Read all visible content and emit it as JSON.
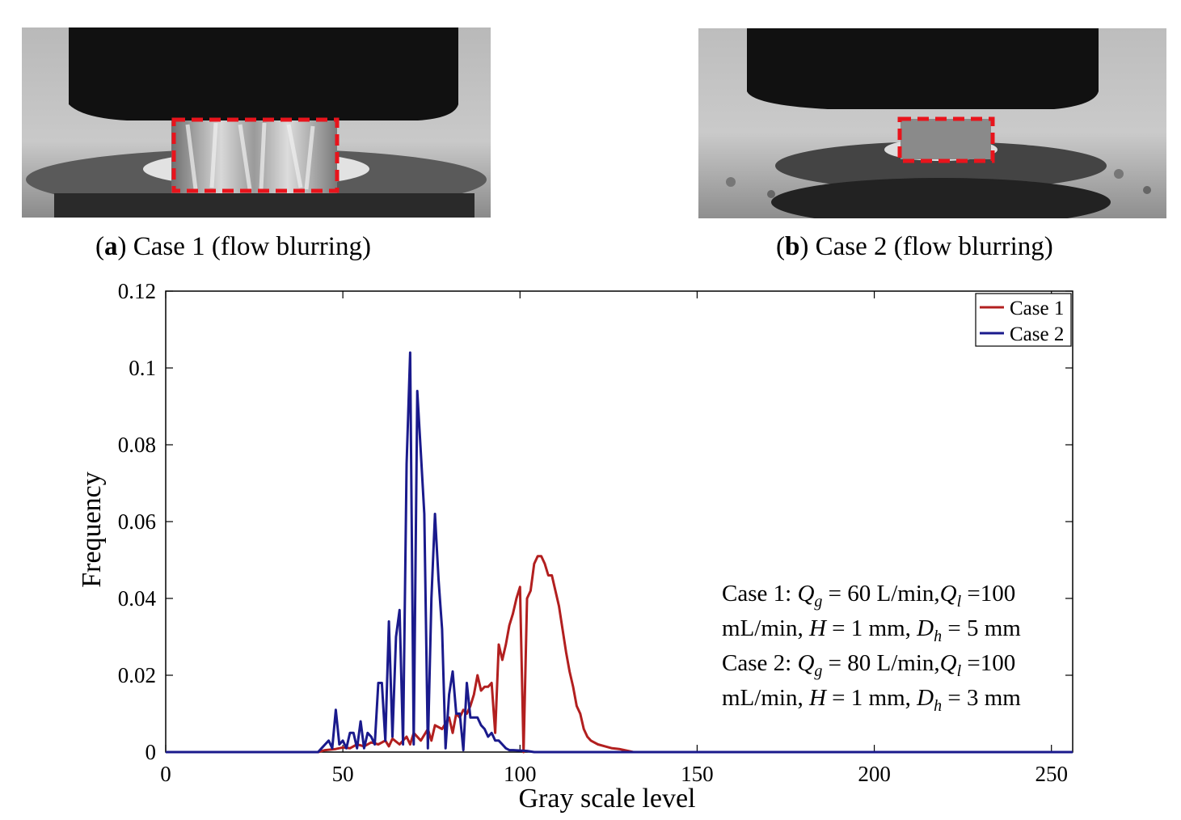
{
  "panels": [
    {
      "letter": "a",
      "caption": "Case 1 (flow blurring)"
    },
    {
      "letter": "b",
      "caption": "Case 2 (flow blurring)"
    }
  ],
  "annotation": [
    {
      "prefix": "Case 1: ",
      "q_g": "Q",
      "g_sub": "g",
      "mid": " = 60 L/min,",
      "q_l": "Q",
      "l_sub": "l",
      "end": " =100"
    },
    {
      "prefix": "mL/min, ",
      "h": "H",
      "h_val": " = 1 mm, ",
      "d": "D",
      "d_sub": "h",
      "d_val": " = 5 mm"
    },
    {
      "prefix": "Case 2: ",
      "q_g": "Q",
      "g_sub": "g",
      "mid": " = 80 L/min,",
      "q_l": "Q",
      "l_sub": "l",
      "end": " =100"
    },
    {
      "prefix": "mL/min, ",
      "h": "H",
      "h_val": " = 1 mm, ",
      "d": "D",
      "d_sub": "h",
      "d_val": " = 3 mm"
    }
  ],
  "colors": {
    "case1": "#b21f1f",
    "case2": "#1a1a8c",
    "highlight_box": "#e8141c"
  },
  "chart_data": {
    "type": "line",
    "xlabel": "Gray scale level",
    "ylabel": "Frequency",
    "xlim": [
      0,
      256
    ],
    "ylim": [
      0,
      0.12
    ],
    "xticks": [
      0,
      50,
      100,
      150,
      200,
      250
    ],
    "yticks": [
      0,
      0.02,
      0.04,
      0.06,
      0.08,
      0.1,
      0.12
    ],
    "ytick_labels": [
      "0",
      "0.02",
      "0.04",
      "0.06",
      "0.08",
      "0.1",
      "0.12"
    ],
    "legend_position": "top-right",
    "series": [
      {
        "name": "Case 1",
        "color": "#b21f1f",
        "points": [
          [
            0,
            0
          ],
          [
            43,
            0
          ],
          [
            45,
            0.0005
          ],
          [
            48,
            0.0008
          ],
          [
            50,
            0.0012
          ],
          [
            52,
            0.001
          ],
          [
            54,
            0.002
          ],
          [
            56,
            0.0015
          ],
          [
            58,
            0.0025
          ],
          [
            60,
            0.002
          ],
          [
            62,
            0.003
          ],
          [
            63,
            0.0015
          ],
          [
            64,
            0.0035
          ],
          [
            66,
            0.002
          ],
          [
            68,
            0.004
          ],
          [
            69,
            0.002
          ],
          [
            70,
            0.005
          ],
          [
            72,
            0.003
          ],
          [
            74,
            0.006
          ],
          [
            75,
            0.003
          ],
          [
            76,
            0.007
          ],
          [
            78,
            0.006
          ],
          [
            80,
            0.009
          ],
          [
            81,
            0.005
          ],
          [
            82,
            0.01
          ],
          [
            83,
            0.009
          ],
          [
            84,
            0.011
          ],
          [
            85,
            0.01
          ],
          [
            86,
            0.012
          ],
          [
            87,
            0.015
          ],
          [
            88,
            0.02
          ],
          [
            89,
            0.016
          ],
          [
            90,
            0.017
          ],
          [
            91,
            0.017
          ],
          [
            92,
            0.018
          ],
          [
            93,
            0.005
          ],
          [
            94,
            0.028
          ],
          [
            95,
            0.024
          ],
          [
            96,
            0.028
          ],
          [
            97,
            0.033
          ],
          [
            98,
            0.036
          ],
          [
            99,
            0.04
          ],
          [
            100,
            0.043
          ],
          [
            101,
            0
          ],
          [
            102,
            0.04
          ],
          [
            103,
            0.042
          ],
          [
            104,
            0.049
          ],
          [
            105,
            0.051
          ],
          [
            106,
            0.051
          ],
          [
            107,
            0.049
          ],
          [
            108,
            0.046
          ],
          [
            109,
            0.046
          ],
          [
            110,
            0.042
          ],
          [
            111,
            0.038
          ],
          [
            112,
            0.032
          ],
          [
            113,
            0.026
          ],
          [
            114,
            0.021
          ],
          [
            115,
            0.017
          ],
          [
            116,
            0.012
          ],
          [
            117,
            0.01
          ],
          [
            118,
            0.006
          ],
          [
            119,
            0.004
          ],
          [
            120,
            0.003
          ],
          [
            122,
            0.002
          ],
          [
            124,
            0.0015
          ],
          [
            126,
            0.001
          ],
          [
            128,
            0.0008
          ],
          [
            130,
            0.0004
          ],
          [
            132,
            0
          ],
          [
            256,
            0
          ]
        ]
      },
      {
        "name": "Case 2",
        "color": "#1a1a8c",
        "points": [
          [
            0,
            0
          ],
          [
            43,
            0
          ],
          [
            44,
            0.001
          ],
          [
            45,
            0.002
          ],
          [
            46,
            0.003
          ],
          [
            47,
            0.001
          ],
          [
            48,
            0.011
          ],
          [
            49,
            0.002
          ],
          [
            50,
            0.003
          ],
          [
            51,
            0.001
          ],
          [
            52,
            0.005
          ],
          [
            53,
            0.005
          ],
          [
            54,
            0.001
          ],
          [
            55,
            0.008
          ],
          [
            56,
            0.001
          ],
          [
            57,
            0.005
          ],
          [
            58,
            0.004
          ],
          [
            59,
            0.002
          ],
          [
            60,
            0.018
          ],
          [
            61,
            0.018
          ],
          [
            62,
            0.003
          ],
          [
            63,
            0.034
          ],
          [
            64,
            0.004
          ],
          [
            65,
            0.03
          ],
          [
            66,
            0.037
          ],
          [
            67,
            0.002
          ],
          [
            68,
            0.075
          ],
          [
            69,
            0.104
          ],
          [
            70,
            0.002
          ],
          [
            71,
            0.094
          ],
          [
            72,
            0.078
          ],
          [
            73,
            0.062
          ],
          [
            74,
            0.001
          ],
          [
            75,
            0.04
          ],
          [
            76,
            0.062
          ],
          [
            77,
            0.045
          ],
          [
            78,
            0.032
          ],
          [
            79,
            0.001
          ],
          [
            80,
            0.015
          ],
          [
            81,
            0.021
          ],
          [
            82,
            0.01
          ],
          [
            83,
            0.01
          ],
          [
            84,
            0.0005
          ],
          [
            85,
            0.018
          ],
          [
            86,
            0.009
          ],
          [
            87,
            0.009
          ],
          [
            88,
            0.009
          ],
          [
            89,
            0.007
          ],
          [
            90,
            0.006
          ],
          [
            91,
            0.004
          ],
          [
            92,
            0.005
          ],
          [
            93,
            0.003
          ],
          [
            94,
            0.003
          ],
          [
            95,
            0.002
          ],
          [
            96,
            0.001
          ],
          [
            97,
            0.0005
          ],
          [
            98,
            0.0005
          ],
          [
            100,
            0.0004
          ],
          [
            102,
            0.0003
          ],
          [
            104,
            0
          ],
          [
            256,
            0
          ]
        ]
      }
    ]
  }
}
